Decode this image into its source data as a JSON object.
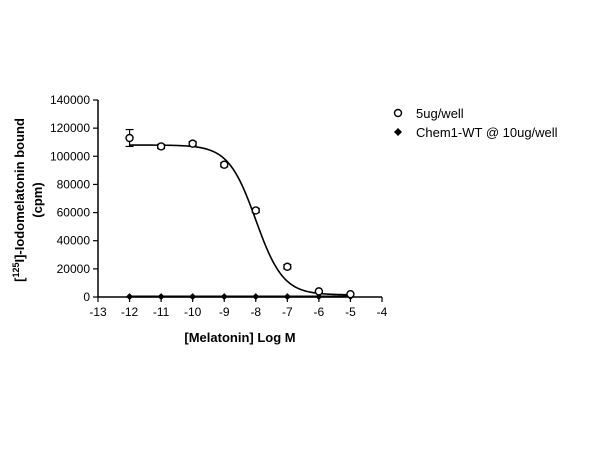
{
  "chart_data": {
    "type": "scatter",
    "title": "",
    "xlabel": "[Melatonin] Log M",
    "ylabel_line1_pre": "[",
    "ylabel_sup": "125",
    "ylabel_line1_post": "I]-Iodomelatonin bound",
    "ylabel_line2": "(cpm)",
    "xlim": [
      -13,
      -4
    ],
    "ylim": [
      0,
      140000
    ],
    "x_ticks": [
      -13,
      -12,
      -11,
      -10,
      -9,
      -8,
      -7,
      -6,
      -5,
      -4
    ],
    "x_tick_labels": [
      "-13",
      "-12",
      "-11",
      "-10",
      "-9",
      "-8",
      "-7",
      "-6",
      "-5",
      "-4"
    ],
    "y_ticks": [
      0,
      20000,
      40000,
      60000,
      80000,
      100000,
      120000,
      140000
    ],
    "y_tick_labels": [
      "0",
      "20000",
      "40000",
      "60000",
      "80000",
      "100000",
      "120000",
      "140000"
    ],
    "grid": false,
    "legend_position": "right",
    "series": [
      {
        "name": "5ug/well",
        "marker": "open-circle",
        "x": [
          -12,
          -11,
          -10,
          -9,
          -8,
          -7,
          -6,
          -5
        ],
        "y": [
          113000,
          107000,
          109000,
          94000,
          61500,
          21500,
          4000,
          2000
        ],
        "err": [
          6000,
          1500,
          1500,
          1500,
          1500,
          1500,
          500,
          500
        ],
        "fit": {
          "model": "sigmoid",
          "top": 108000,
          "bottom": 1500,
          "logEC50": -8.0,
          "hill": -1.0
        }
      },
      {
        "name": "Chem1-WT @ 10ug/well",
        "marker": "filled-diamond",
        "x": [
          -12,
          -11,
          -10,
          -9,
          -8,
          -7,
          -6,
          -5
        ],
        "y": [
          300,
          300,
          300,
          300,
          300,
          300,
          300,
          300
        ],
        "fit": {
          "model": "flat",
          "value": 300
        }
      }
    ],
    "color": "#000000"
  }
}
